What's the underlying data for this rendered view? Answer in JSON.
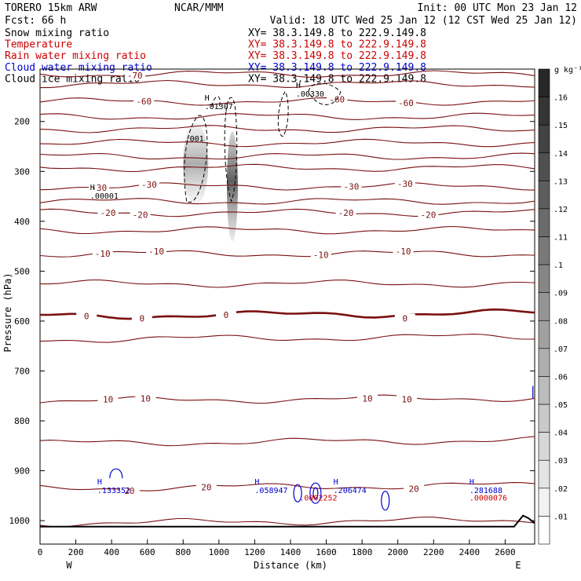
{
  "header": {
    "model": "TORERO 15km ARW",
    "center": "NCAR/MMM",
    "init": "Init: 00 UTC Mon 23 Jan 12",
    "fcst": "Fcst:   66 h",
    "valid": "Valid: 18 UTC Wed 25 Jan 12 (12 CST Wed 25 Jan 12)"
  },
  "fields": [
    {
      "label": "Snow mixing ratio",
      "xy": "XY=  38.3.149.8 to 222.9.149.8",
      "label_color": "#000000",
      "xy_color": "#000000"
    },
    {
      "label": "Temperature",
      "xy": "XY=  38.3.149.8 to 222.9.149.8",
      "label_color": "#cc0000",
      "xy_color": "#cc0000"
    },
    {
      "label": "Rain water mixing ratio",
      "xy": "XY=  38.3.149.8 to 222.9.149.8",
      "label_color": "#cc0000",
      "xy_color": "#cc0000"
    },
    {
      "label": "Cloud water mixing ratio",
      "xy": "XY=  38.3.149.8 to 222.9.149.8",
      "label_color": "#0000cc",
      "xy_color": "#0000cc"
    },
    {
      "label": "Cloud ice mixing ratio",
      "xy": "XY=  38.3.149.8 to 222.9.149.8",
      "label_color": "#000000",
      "xy_color": "#000000"
    }
  ],
  "chart_data": {
    "type": "contour cross-section",
    "xlabel": "Distance (km)",
    "ylabel": "Pressure (hPa)",
    "x_ticks": [
      0,
      200,
      400,
      600,
      800,
      1000,
      1200,
      1400,
      1600,
      1800,
      2000,
      2200,
      2400,
      2600
    ],
    "y_ticks": [
      200,
      300,
      400,
      500,
      600,
      700,
      800,
      900,
      1000
    ],
    "xlim": [
      0,
      2765
    ],
    "ylim": [
      1047,
      95
    ],
    "left_end": "W",
    "right_end": "E",
    "colorbar": {
      "unit": "g kg⁻¹",
      "ticks": [
        ".16",
        ".15",
        ".14",
        ".13",
        ".12",
        ".11",
        ".1",
        ".09",
        ".08",
        ".07",
        ".06",
        ".05",
        ".04",
        ".03",
        ".02",
        ".01"
      ]
    },
    "temperature_levels": [
      {
        "t": -70,
        "p": 105,
        "labels": [
          {
            "text": "-70",
            "x": 530
          }
        ]
      },
      {
        "t": -65,
        "p": 125
      },
      {
        "t": -60,
        "p": 160,
        "labels": [
          {
            "text": "-60",
            "x": 580
          },
          {
            "text": "-60",
            "x": 1660
          },
          {
            "text": "-60",
            "x": 2045
          }
        ]
      },
      {
        "t": -55,
        "p": 190
      },
      {
        "t": -50,
        "p": 215
      },
      {
        "t": -45,
        "p": 243
      },
      {
        "t": -40,
        "p": 270
      },
      {
        "t": -35,
        "p": 293
      },
      {
        "t": -30,
        "p": 330,
        "labels": [
          {
            "text": "-30",
            "x": 330
          },
          {
            "text": "-30",
            "x": 610
          },
          {
            "text": "-30",
            "x": 1740
          },
          {
            "text": "-30",
            "x": 2040
          }
        ]
      },
      {
        "t": -25,
        "p": 360
      },
      {
        "t": -20,
        "p": 383,
        "labels": [
          {
            "text": "-20",
            "x": 380
          },
          {
            "text": "-20",
            "x": 560
          },
          {
            "text": "-20",
            "x": 1710
          },
          {
            "text": "-20",
            "x": 2170
          }
        ]
      },
      {
        "t": -15,
        "p": 418
      },
      {
        "t": -10,
        "p": 465,
        "labels": [
          {
            "text": "-10",
            "x": 350
          },
          {
            "text": "-10",
            "x": 650
          },
          {
            "text": "-10",
            "x": 1570
          },
          {
            "text": "-10",
            "x": 2030
          }
        ]
      },
      {
        "t": -5,
        "p": 525
      },
      {
        "t": 0,
        "p": 590,
        "bold": true,
        "labels": [
          {
            "text": "0",
            "x": 260
          },
          {
            "text": "0",
            "x": 570
          },
          {
            "text": "0",
            "x": 1040
          },
          {
            "text": "0",
            "x": 2040
          }
        ]
      },
      {
        "t": 5,
        "p": 637
      },
      {
        "t": 10,
        "p": 760,
        "labels": [
          {
            "text": "10",
            "x": 590
          },
          {
            "text": "10",
            "x": 380
          },
          {
            "text": "10",
            "x": 1830
          },
          {
            "text": "10",
            "x": 2050
          }
        ]
      },
      {
        "t": 15,
        "p": 845
      },
      {
        "t": 20,
        "p": 935,
        "labels": [
          {
            "text": "20",
            "x": 500
          },
          {
            "text": "20",
            "x": 930
          },
          {
            "text": "20",
            "x": 2090
          }
        ]
      },
      {
        "t": 25,
        "p": 1005
      }
    ],
    "annotations": [
      {
        "marker": "H",
        "value": ".00001",
        "x": 280,
        "p": 355,
        "color": "#000000"
      },
      {
        "marker": "H",
        "value": ".01307",
        "x": 920,
        "p": 175,
        "color": "#000000"
      },
      {
        "marker": "H",
        "value": ".00330",
        "x": 1430,
        "p": 150,
        "color": "#000000"
      },
      {
        "marker": "",
        "value": ".001",
        "x": 810,
        "p": 240,
        "color": "#000000"
      },
      {
        "marker": "H",
        "value": ".133352",
        "x": 320,
        "p": 945,
        "color": "#0000cc"
      },
      {
        "marker": "H",
        "value": ".058947",
        "x": 1200,
        "p": 945,
        "color": "#0000cc"
      },
      {
        "marker": "H",
        "value": ".206474",
        "x": 1640,
        "p": 945,
        "color": "#0000cc"
      },
      {
        "marker": "H",
        "value": ".281688",
        "x": 2400,
        "p": 945,
        "color": "#0000cc"
      },
      {
        "marker": "",
        "value": ".0002252",
        "x": 1450,
        "p": 960,
        "color": "#cc0000"
      },
      {
        "marker": "",
        "value": ".0000076",
        "x": 2400,
        "p": 960,
        "color": "#cc0000"
      }
    ]
  }
}
